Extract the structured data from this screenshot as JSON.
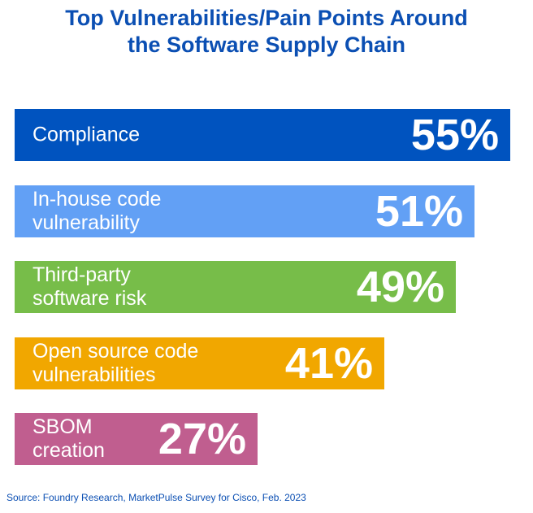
{
  "chart_data": {
    "type": "bar",
    "orientation": "horizontal",
    "title_lines": [
      "Top Vulnerabilities/Pain Points Around",
      "the Software Supply Chain"
    ],
    "categories": [
      "Compliance",
      "In-house code\nvulnerability",
      "Third-party\nsoftware risk",
      "Open source code\nvulnerabilities",
      "SBOM\ncreation"
    ],
    "values": [
      55,
      51,
      49,
      41,
      27
    ],
    "value_labels": [
      "55%",
      "51%",
      "49%",
      "41%",
      "27%"
    ],
    "colors": [
      "#0053bf",
      "#62a0f5",
      "#77bd49",
      "#f1a700",
      "#c05e8f"
    ],
    "xlim": [
      0,
      55
    ],
    "grid": false,
    "legend": "none",
    "axes_visible": false
  },
  "source": "Source: Foundry Research, MarketPulse Survey for Cisco, Feb. 2023"
}
